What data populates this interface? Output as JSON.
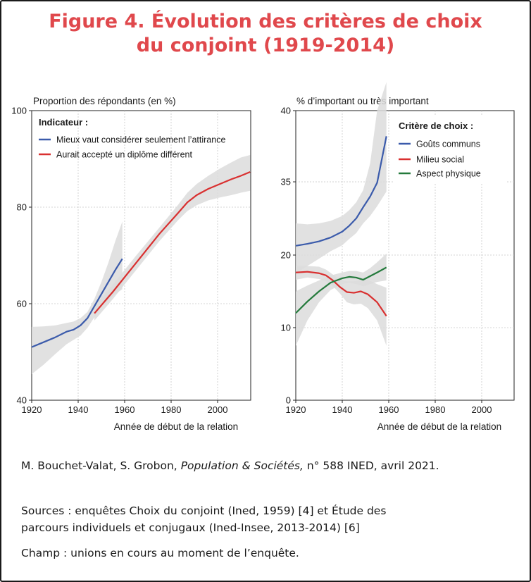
{
  "figure": {
    "title_line1": "Figure 4. Évolution des critères de choix",
    "title_line2": "du conjoint (1919-2014)",
    "colors": {
      "title": "#e0484c",
      "blue": "#3b5bab",
      "red": "#d93030",
      "green": "#247a3c",
      "band": "#dcdcdc"
    }
  },
  "caption": {
    "authors": "M. Bouchet-Valat, S. Grobon,",
    "journal": "Population & Sociétés,",
    "issue": "n° 588 INED, avril 2021."
  },
  "sources": {
    "line1": "Sources : enquêtes Choix du conjoint (Ined, 1959) [4] et Étude des",
    "line2": "parcours individuels et conjugaux (Ined-Insee, 2013-2014) [6]",
    "champ": "Champ : unions en cours au moment de l’enquête."
  },
  "chart_data": [
    {
      "type": "line",
      "ylabel": "Proportion des répondants (en %)",
      "xlabel": "Année de début de la relation",
      "xlim": [
        1920,
        2014
      ],
      "ylim": [
        40,
        100
      ],
      "xticks": [
        "1920",
        "1940",
        "1960",
        "1980",
        "2000"
      ],
      "yticks": [
        "40",
        "60",
        "80",
        "100"
      ],
      "legend_title": "Indicateur :",
      "legend_position": "top-left",
      "grid": true,
      "series": [
        {
          "name": "Mieux vaut considérer seulement l’attirance",
          "color": "#3b5bab",
          "x": [
            1920,
            1925,
            1930,
            1935,
            1938,
            1941,
            1944,
            1947,
            1950,
            1953,
            1956,
            1959
          ],
          "y": [
            51,
            52,
            53,
            54.2,
            54.6,
            55.5,
            57,
            59.5,
            62,
            64.5,
            67,
            69.3
          ],
          "band_upper": [
            55.2,
            55.3,
            55.5,
            56,
            56.3,
            57,
            58.3,
            61,
            64.5,
            68.5,
            73,
            77
          ],
          "band_lower": [
            45.4,
            47.3,
            49.5,
            51.6,
            52.5,
            53.4,
            55,
            57.2,
            59.5,
            60.8,
            62,
            63
          ]
        },
        {
          "name": "Aurait accepté un diplôme différent",
          "color": "#d93030",
          "x": [
            1947,
            1955,
            1965,
            1975,
            1983,
            1987,
            1991,
            1996,
            2001,
            2006,
            2010,
            2014
          ],
          "y": [
            58,
            62.5,
            68.5,
            74.5,
            78.8,
            81,
            82.5,
            83.8,
            84.8,
            85.8,
            86.5,
            87.3
          ],
          "band_upper": [
            59.5,
            64,
            70,
            75.8,
            80.5,
            83,
            84.8,
            86.5,
            88,
            89.3,
            90.3,
            90.8
          ],
          "band_lower": [
            56.5,
            61,
            67,
            73,
            77.3,
            79.2,
            80.4,
            81.4,
            82,
            82.5,
            83,
            83.4
          ]
        }
      ]
    },
    {
      "type": "line",
      "ylabel": "% d’important ou très important",
      "xlabel": "Année de début de la relation",
      "xlim": [
        1920,
        2014
      ],
      "ytick_labels": [
        "0",
        "10",
        "20",
        "35",
        "40"
      ],
      "legend_title": "Critère de choix :",
      "legend_position": "top-right",
      "grid": true,
      "series": [
        {
          "name": "Goûts communs",
          "color": "#3b5bab",
          "x": [
            1920,
            1925,
            1930,
            1935,
            1940,
            1943,
            1946,
            1949,
            1952,
            1955,
            1959
          ],
          "y": [
            21.9,
            22.3,
            22.8,
            23.6,
            24.8,
            26,
            27.5,
            29.8,
            32,
            34.8,
            38.2
          ],
          "band_upper": [
            26.5,
            26.3,
            26.5,
            27,
            28,
            29.2,
            30.8,
            33.3,
            36.3,
            40,
            42
          ],
          "band_lower": [
            17.5,
            18.5,
            19.5,
            20.8,
            22,
            23.3,
            24.5,
            26.5,
            28,
            30,
            33
          ]
        },
        {
          "name": "Milieu social",
          "color": "#d93030",
          "x": [
            1920,
            1925,
            1930,
            1933,
            1936,
            1939,
            1942,
            1945,
            1948,
            1951,
            1955,
            1959
          ],
          "y": [
            17.6,
            17.7,
            17.5,
            17.2,
            16.5,
            15.6,
            14.9,
            14.8,
            15,
            14.6,
            13.5,
            11.6
          ],
          "band_upper": [
            18.5,
            18.5,
            18.4,
            18,
            17.3,
            16.6,
            16.4,
            16.4,
            16.5,
            16.6,
            16,
            15.5
          ],
          "band_lower": [
            16.6,
            16.9,
            16.7,
            16.4,
            15.7,
            14.7,
            13.5,
            13.2,
            13.3,
            12.7,
            11,
            7.5
          ]
        },
        {
          "name": "Aspect physique",
          "color": "#247a3c",
          "x": [
            1920,
            1925,
            1930,
            1935,
            1940,
            1943,
            1946,
            1949,
            1952,
            1955,
            1959
          ],
          "y": [
            12,
            13.6,
            15,
            16.2,
            16.8,
            17,
            16.9,
            16.6,
            17.1,
            17.6,
            18.3
          ],
          "band_upper": [
            15,
            15.8,
            16.5,
            17.2,
            17.6,
            17.8,
            17.8,
            17.6,
            18.2,
            19,
            20.3
          ],
          "band_lower": [
            7.5,
            11,
            13.5,
            15.2,
            16,
            16.2,
            16,
            15.7,
            16,
            16.3,
            16.5
          ]
        }
      ]
    }
  ]
}
